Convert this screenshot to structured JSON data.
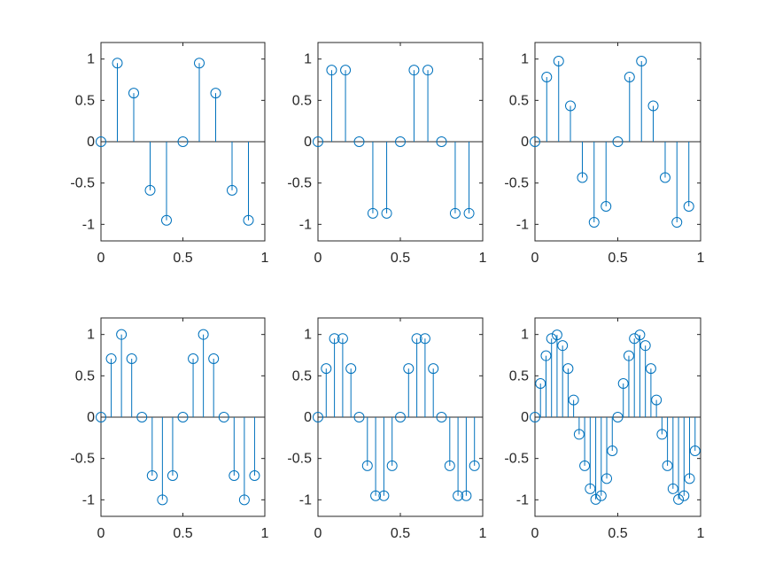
{
  "figure": {
    "background": "#ffffff",
    "axis_color": "#262626",
    "series_color": "#0072BD"
  },
  "chart_data": [
    {
      "type": "stem",
      "xlim": [
        0,
        1
      ],
      "ylim": [
        -1.2,
        1.2
      ],
      "xticks": [
        "0",
        "0.5",
        "1"
      ],
      "yticks": [
        "-1",
        "-0.5",
        "0",
        "0.5",
        "1"
      ],
      "grid": false,
      "legend": "none",
      "x": [
        0,
        0.1,
        0.2,
        0.3,
        0.4,
        0.5,
        0.6,
        0.7,
        0.8,
        0.9
      ],
      "y": [
        0,
        0.951,
        0.588,
        -0.588,
        -0.951,
        0,
        0.951,
        0.588,
        -0.588,
        -0.951
      ]
    },
    {
      "type": "stem",
      "xlim": [
        0,
        1
      ],
      "ylim": [
        -1.2,
        1.2
      ],
      "xticks": [
        "0",
        "0.5",
        "1"
      ],
      "yticks": [
        "-1",
        "-0.5",
        "0",
        "0.5",
        "1"
      ],
      "grid": false,
      "legend": "none",
      "x": [
        0,
        0.083,
        0.167,
        0.25,
        0.333,
        0.417,
        0.5,
        0.583,
        0.667,
        0.75,
        0.833,
        0.917
      ],
      "y": [
        0,
        0.866,
        0.866,
        0,
        -0.866,
        -0.866,
        0,
        0.866,
        0.866,
        0,
        -0.866,
        -0.866
      ]
    },
    {
      "type": "stem",
      "xlim": [
        0,
        1
      ],
      "ylim": [
        -1.2,
        1.2
      ],
      "xticks": [
        "0",
        "0.5",
        "1"
      ],
      "yticks": [
        "-1",
        "-0.5",
        "0",
        "0.5",
        "1"
      ],
      "grid": false,
      "legend": "none",
      "x": [
        0,
        0.071,
        0.143,
        0.214,
        0.286,
        0.357,
        0.429,
        0.5,
        0.571,
        0.643,
        0.714,
        0.786,
        0.857,
        0.929
      ],
      "y": [
        0,
        0.782,
        0.975,
        0.434,
        -0.434,
        -0.975,
        -0.782,
        0,
        0.782,
        0.975,
        0.434,
        -0.434,
        -0.975,
        -0.782
      ]
    },
    {
      "type": "stem",
      "xlim": [
        0,
        1
      ],
      "ylim": [
        -1.2,
        1.2
      ],
      "xticks": [
        "0",
        "0.5",
        "1"
      ],
      "yticks": [
        "-1",
        "-0.5",
        "0",
        "0.5",
        "1"
      ],
      "grid": false,
      "legend": "none",
      "x": [
        0,
        0.0625,
        0.125,
        0.1875,
        0.25,
        0.3125,
        0.375,
        0.4375,
        0.5,
        0.5625,
        0.625,
        0.6875,
        0.75,
        0.8125,
        0.875,
        0.9375
      ],
      "y": [
        0,
        0.707,
        1,
        0.707,
        0,
        -0.707,
        -1,
        -0.707,
        0,
        0.707,
        1,
        0.707,
        0,
        -0.707,
        -1,
        -0.707
      ]
    },
    {
      "type": "stem",
      "xlim": [
        0,
        1
      ],
      "ylim": [
        -1.2,
        1.2
      ],
      "xticks": [
        "0",
        "0.5",
        "1"
      ],
      "yticks": [
        "-1",
        "-0.5",
        "0",
        "0.5",
        "1"
      ],
      "grid": false,
      "legend": "none",
      "x": [
        0,
        0.05,
        0.1,
        0.15,
        0.2,
        0.25,
        0.3,
        0.35,
        0.4,
        0.45,
        0.5,
        0.55,
        0.6,
        0.65,
        0.7,
        0.75,
        0.8,
        0.85,
        0.9,
        0.95
      ],
      "y": [
        0,
        0.588,
        0.951,
        0.951,
        0.588,
        0,
        -0.588,
        -0.951,
        -0.951,
        -0.588,
        0,
        0.588,
        0.951,
        0.951,
        0.588,
        0,
        -0.588,
        -0.951,
        -0.951,
        -0.588
      ]
    },
    {
      "type": "stem",
      "xlim": [
        0,
        1
      ],
      "ylim": [
        -1.2,
        1.2
      ],
      "xticks": [
        "0",
        "0.5",
        "1"
      ],
      "yticks": [
        "-1",
        "-0.5",
        "0",
        "0.5",
        "1"
      ],
      "grid": false,
      "legend": "none",
      "x": [
        0,
        0.0333,
        0.0667,
        0.1,
        0.1333,
        0.1667,
        0.2,
        0.2333,
        0.2667,
        0.3,
        0.3333,
        0.3667,
        0.4,
        0.4333,
        0.4667,
        0.5,
        0.5333,
        0.5667,
        0.6,
        0.6333,
        0.6667,
        0.7,
        0.7333,
        0.7667,
        0.8,
        0.8333,
        0.8667,
        0.9,
        0.9333,
        0.9667
      ],
      "y": [
        0,
        0.407,
        0.743,
        0.951,
        0.995,
        0.866,
        0.588,
        0.208,
        -0.208,
        -0.588,
        -0.866,
        -0.995,
        -0.951,
        -0.743,
        -0.407,
        0,
        0.407,
        0.743,
        0.951,
        0.995,
        0.866,
        0.588,
        0.208,
        -0.208,
        -0.588,
        -0.866,
        -0.995,
        -0.951,
        -0.743,
        -0.407
      ]
    }
  ]
}
